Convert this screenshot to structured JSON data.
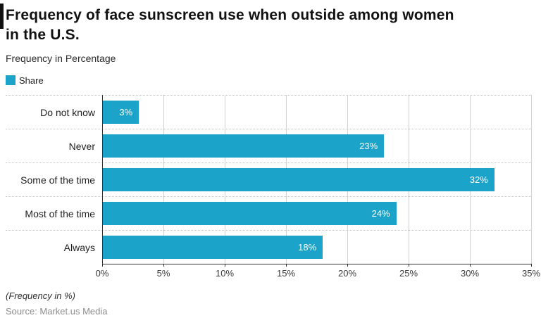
{
  "header": {
    "title": "Frequency of face sunscreen use when outside among women in the U.S.",
    "subtitle": "Frequency in Percentage"
  },
  "legend": {
    "label": "Share",
    "color": "#1ca3ca"
  },
  "chart_data": {
    "type": "bar",
    "orientation": "horizontal",
    "title": "Frequency of face sunscreen use when outside among women in the U.S.",
    "subtitle": "Frequency in Percentage",
    "series_name": "Share",
    "categories": [
      "Do not know",
      "Never",
      "Some of the time",
      "Most of the time",
      "Always"
    ],
    "values": [
      3,
      23,
      32,
      24,
      18
    ],
    "value_labels": [
      "3%",
      "23%",
      "32%",
      "24%",
      "18%"
    ],
    "xlabel": "(Frequency in %)",
    "ylabel": "",
    "xlim": [
      0,
      35
    ],
    "x_ticks": [
      0,
      5,
      10,
      15,
      20,
      25,
      30,
      35
    ],
    "x_tick_labels": [
      "0%",
      "5%",
      "10%",
      "15%",
      "20%",
      "25%",
      "30%",
      "35%"
    ],
    "bar_color": "#1ca3ca",
    "grid": true,
    "gridline_color": "#d2d2d2",
    "legend_position": "top-left"
  },
  "footer": {
    "note": "(Frequency in %)",
    "source": "Source: Market.us Media"
  }
}
